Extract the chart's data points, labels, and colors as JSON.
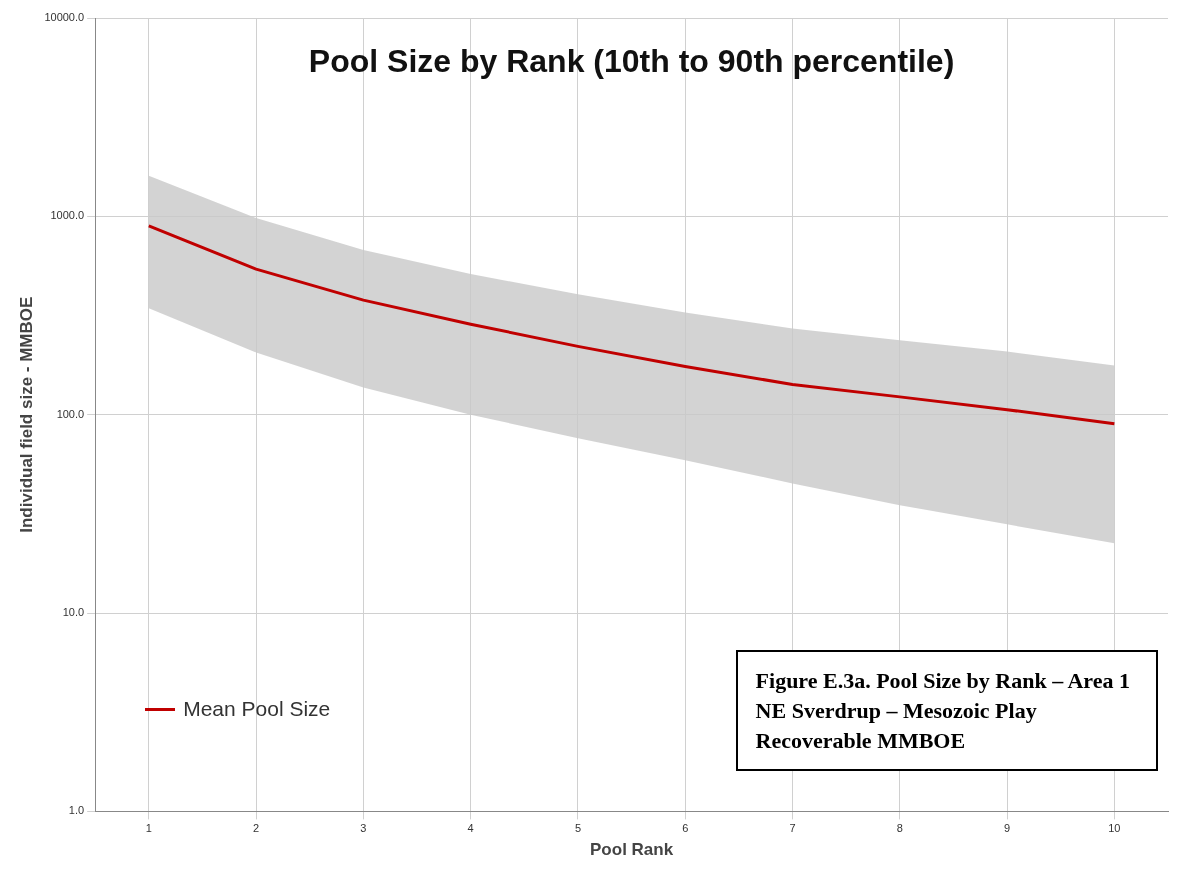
{
  "chart_data": {
    "type": "line",
    "title": "Pool Size by Rank (10th to 90th percentile)",
    "xlabel": "Pool Rank",
    "ylabel": "Individual field size - MMBOE",
    "x": [
      1,
      2,
      3,
      4,
      5,
      6,
      7,
      8,
      9,
      10
    ],
    "series": [
      {
        "name": "Mean Pool Size",
        "color": "#c00000",
        "values": [
          895,
          542,
          378,
          286,
          221,
          175,
          142,
          123,
          106,
          90
        ],
        "lower": [
          344,
          206,
          137,
          100,
          76,
          59,
          45,
          35,
          28,
          22.5
        ],
        "upper": [
          1600,
          980,
          677,
          512,
          405,
          328,
          272,
          237,
          208,
          177
        ]
      }
    ],
    "log": "y",
    "xlim": [
      0.5,
      10.5
    ],
    "xticks": [
      1,
      2,
      3,
      4,
      5,
      6,
      7,
      8,
      9,
      10
    ],
    "ylim": [
      1,
      10000
    ],
    "yticks": [
      {
        "value": 1,
        "label": "1.0"
      },
      {
        "value": 10,
        "label": "10.0"
      },
      {
        "value": 100,
        "label": "100.0"
      },
      {
        "value": 1000,
        "label": "1000.0"
      },
      {
        "value": 10000,
        "label": "10000.0"
      }
    ],
    "grid": true,
    "legend": "bottom left",
    "marker": "none",
    "line_style": "solid",
    "annotations": [
      "Figure E.3a.  Pool Size by Rank – Area 1\nNE Sverdrup – Mesozoic Play\nRecoverable MMBOE"
    ]
  }
}
